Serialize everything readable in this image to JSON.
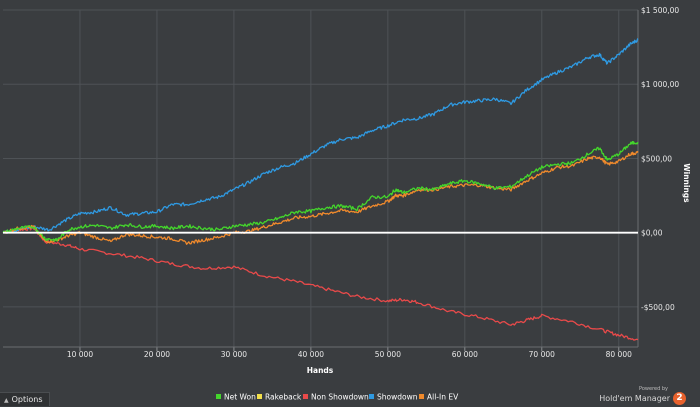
{
  "chart_data": {
    "type": "line",
    "xlabel": "Hands",
    "ylabel": "Winnings",
    "xlim": [
      0,
      82500
    ],
    "ylim": [
      -770,
      1500
    ],
    "x_ticks": [
      {
        "value": 10000,
        "label": "10 000"
      },
      {
        "value": 20000,
        "label": "20 000"
      },
      {
        "value": 30000,
        "label": "30 000"
      },
      {
        "value": 40000,
        "label": "40 000"
      },
      {
        "value": 50000,
        "label": "50 000"
      },
      {
        "value": 60000,
        "label": "60 000"
      },
      {
        "value": 70000,
        "label": "70 000"
      },
      {
        "value": 80000,
        "label": "80 000"
      }
    ],
    "y_ticks": [
      {
        "value": -500,
        "label": "-$500,00"
      },
      {
        "value": 0,
        "label": "$0,00"
      },
      {
        "value": 500,
        "label": "$500,00"
      },
      {
        "value": 1000,
        "label": "$1 000,00"
      },
      {
        "value": 1500,
        "label": "$1 500,00"
      }
    ],
    "legend_position": "bottom",
    "series": [
      {
        "name": "Net Won",
        "color": "#44d62c",
        "points": [
          [
            0,
            0
          ],
          [
            2000,
            30
          ],
          [
            4000,
            40
          ],
          [
            5500,
            -40
          ],
          [
            7000,
            -50
          ],
          [
            8500,
            20
          ],
          [
            10000,
            40
          ],
          [
            12000,
            50
          ],
          [
            14000,
            30
          ],
          [
            16000,
            55
          ],
          [
            18000,
            40
          ],
          [
            20000,
            45
          ],
          [
            22000,
            30
          ],
          [
            24000,
            45
          ],
          [
            26000,
            30
          ],
          [
            28000,
            20
          ],
          [
            30000,
            45
          ],
          [
            32000,
            55
          ],
          [
            34000,
            70
          ],
          [
            36000,
            100
          ],
          [
            38000,
            140
          ],
          [
            40000,
            145
          ],
          [
            42000,
            170
          ],
          [
            44000,
            180
          ],
          [
            46000,
            160
          ],
          [
            48000,
            240
          ],
          [
            50000,
            240
          ],
          [
            51000,
            290
          ],
          [
            52000,
            270
          ],
          [
            54000,
            300
          ],
          [
            56000,
            290
          ],
          [
            58000,
            330
          ],
          [
            60000,
            350
          ],
          [
            62000,
            330
          ],
          [
            64000,
            300
          ],
          [
            66000,
            310
          ],
          [
            68000,
            380
          ],
          [
            70000,
            440
          ],
          [
            72000,
            460
          ],
          [
            74000,
            470
          ],
          [
            76000,
            530
          ],
          [
            77500,
            570
          ],
          [
            78500,
            490
          ],
          [
            80000,
            530
          ],
          [
            81500,
            600
          ],
          [
            82500,
            610
          ]
        ]
      },
      {
        "name": "Rakeback",
        "color": "#f3e04a",
        "points": [
          [
            0,
            0
          ],
          [
            82500,
            0
          ]
        ]
      },
      {
        "name": "Non Showdown",
        "color": "#e94a4a",
        "points": [
          [
            0,
            0
          ],
          [
            2000,
            20
          ],
          [
            4000,
            30
          ],
          [
            5500,
            -60
          ],
          [
            8000,
            -80
          ],
          [
            10000,
            -110
          ],
          [
            14000,
            -140
          ],
          [
            18000,
            -170
          ],
          [
            22000,
            -210
          ],
          [
            26000,
            -240
          ],
          [
            30000,
            -230
          ],
          [
            34000,
            -290
          ],
          [
            38000,
            -330
          ],
          [
            42000,
            -380
          ],
          [
            46000,
            -430
          ],
          [
            50000,
            -460
          ],
          [
            52000,
            -450
          ],
          [
            54000,
            -470
          ],
          [
            58000,
            -530
          ],
          [
            62000,
            -570
          ],
          [
            66000,
            -620
          ],
          [
            68000,
            -590
          ],
          [
            70000,
            -560
          ],
          [
            74000,
            -600
          ],
          [
            78000,
            -660
          ],
          [
            80000,
            -690
          ],
          [
            82500,
            -720
          ]
        ]
      },
      {
        "name": "Showdown",
        "color": "#2f9ae2",
        "points": [
          [
            0,
            0
          ],
          [
            2000,
            20
          ],
          [
            4000,
            40
          ],
          [
            6000,
            20
          ],
          [
            8000,
            80
          ],
          [
            10000,
            130
          ],
          [
            12000,
            140
          ],
          [
            14000,
            170
          ],
          [
            16000,
            120
          ],
          [
            18000,
            130
          ],
          [
            20000,
            140
          ],
          [
            22000,
            190
          ],
          [
            24000,
            190
          ],
          [
            26000,
            220
          ],
          [
            28000,
            240
          ],
          [
            30000,
            290
          ],
          [
            32000,
            340
          ],
          [
            34000,
            400
          ],
          [
            36000,
            440
          ],
          [
            38000,
            470
          ],
          [
            40000,
            530
          ],
          [
            42000,
            590
          ],
          [
            44000,
            630
          ],
          [
            46000,
            640
          ],
          [
            48000,
            690
          ],
          [
            50000,
            720
          ],
          [
            52000,
            760
          ],
          [
            54000,
            770
          ],
          [
            56000,
            800
          ],
          [
            58000,
            860
          ],
          [
            60000,
            880
          ],
          [
            62000,
            890
          ],
          [
            64000,
            900
          ],
          [
            66000,
            870
          ],
          [
            68000,
            960
          ],
          [
            70000,
            1030
          ],
          [
            72000,
            1080
          ],
          [
            74000,
            1120
          ],
          [
            76000,
            1180
          ],
          [
            77500,
            1200
          ],
          [
            78500,
            1140
          ],
          [
            80000,
            1200
          ],
          [
            81500,
            1270
          ],
          [
            82500,
            1300
          ]
        ]
      },
      {
        "name": "All-In EV",
        "color": "#f08a2c",
        "points": [
          [
            0,
            0
          ],
          [
            2000,
            30
          ],
          [
            4000,
            40
          ],
          [
            5500,
            -60
          ],
          [
            7000,
            -50
          ],
          [
            8500,
            -20
          ],
          [
            10000,
            0
          ],
          [
            12000,
            -30
          ],
          [
            14000,
            -60
          ],
          [
            16000,
            -10
          ],
          [
            18000,
            -20
          ],
          [
            20000,
            -30
          ],
          [
            22000,
            -40
          ],
          [
            24000,
            -70
          ],
          [
            26000,
            -50
          ],
          [
            28000,
            -30
          ],
          [
            30000,
            0
          ],
          [
            32000,
            10
          ],
          [
            34000,
            40
          ],
          [
            36000,
            70
          ],
          [
            38000,
            100
          ],
          [
            40000,
            110
          ],
          [
            42000,
            130
          ],
          [
            44000,
            150
          ],
          [
            46000,
            140
          ],
          [
            48000,
            180
          ],
          [
            50000,
            210
          ],
          [
            51000,
            250
          ],
          [
            52000,
            250
          ],
          [
            54000,
            290
          ],
          [
            56000,
            290
          ],
          [
            58000,
            310
          ],
          [
            60000,
            320
          ],
          [
            62000,
            320
          ],
          [
            64000,
            300
          ],
          [
            66000,
            290
          ],
          [
            68000,
            350
          ],
          [
            70000,
            400
          ],
          [
            72000,
            440
          ],
          [
            74000,
            450
          ],
          [
            76000,
            500
          ],
          [
            77500,
            510
          ],
          [
            78500,
            460
          ],
          [
            80000,
            480
          ],
          [
            81500,
            530
          ],
          [
            82500,
            540
          ]
        ]
      }
    ]
  },
  "footer": {
    "options_label": "Options",
    "powered_by": "Powered by",
    "brand_name": "Hold'em Manager",
    "brand_badge": "2"
  }
}
